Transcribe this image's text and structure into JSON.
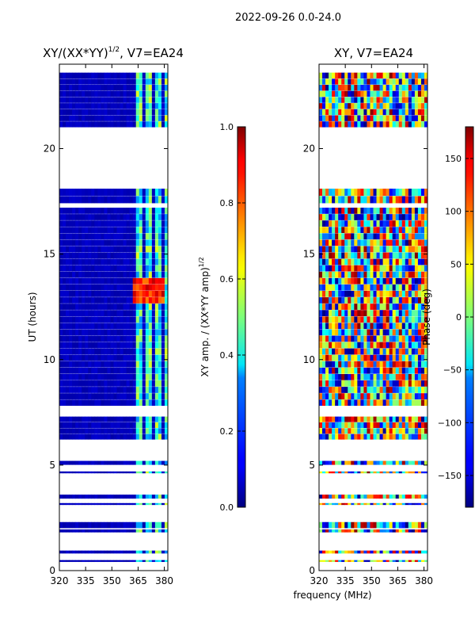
{
  "figure": {
    "suptitle": "2022-09-26 0.0-24.0",
    "common_xlabel": "frequency (MHz)"
  },
  "chart_data": [
    {
      "type": "heatmap",
      "title_main": "XY/(XX*YY)",
      "title_sup": "1/2",
      "title_rest": ", V7=EA24",
      "xlabel": "frequency (MHz)",
      "ylabel": "UT (hours)",
      "xlim": [
        320,
        382
      ],
      "ylim": [
        0,
        24
      ],
      "xticks": [
        320,
        335,
        350,
        365,
        380
      ],
      "yticks": [
        0,
        5,
        10,
        15,
        20
      ],
      "colorbar": {
        "label_main": "XY amp. / (XX*YY amp)",
        "label_sup": "1/2",
        "range": [
          0.0,
          1.0
        ],
        "ticks": [
          "0.0",
          "0.2",
          "0.4",
          "0.6",
          "0.8",
          "1.0"
        ],
        "tick_values": [
          0.0,
          0.2,
          0.4,
          0.6,
          0.8,
          1.0
        ]
      },
      "data_rows_ut": [
        [
          0.4,
          0.5
        ],
        [
          0.8,
          0.95
        ],
        [
          1.8,
          1.95
        ],
        [
          2.0,
          2.3
        ],
        [
          3.1,
          3.2
        ],
        [
          3.4,
          3.6
        ],
        [
          4.6,
          4.7
        ],
        [
          5.0,
          5.2
        ],
        [
          6.2,
          7.3
        ],
        [
          7.8,
          17.2
        ],
        [
          17.4,
          18.1
        ],
        [
          21.0,
          23.6
        ]
      ],
      "notes": "Amplitude low (~0.05) across band; elevated values (0.3-0.6) near 365-380 MHz; peak ~0.85 at 362-380 MHz around 12.5-13.8 UT"
    },
    {
      "type": "heatmap",
      "title": "XY, V7=EA24",
      "xlabel": "frequency (MHz)",
      "ylabel": "",
      "xlim": [
        320,
        382
      ],
      "ylim": [
        0,
        24
      ],
      "xticks": [
        320,
        335,
        350,
        365,
        380
      ],
      "yticks": [
        0,
        5,
        10,
        15,
        20
      ],
      "colorbar": {
        "label": "Phase (deg)",
        "range": [
          -180,
          180
        ],
        "ticks": [
          "150",
          "100",
          "50",
          "0",
          "−50",
          "−100",
          "−150"
        ],
        "tick_values": [
          150,
          100,
          50,
          0,
          -50,
          -100,
          -150
        ]
      },
      "data_rows_ut": [
        [
          0.4,
          0.5
        ],
        [
          0.8,
          0.95
        ],
        [
          1.8,
          1.95
        ],
        [
          2.0,
          2.3
        ],
        [
          3.1,
          3.2
        ],
        [
          3.4,
          3.6
        ],
        [
          4.6,
          4.7
        ],
        [
          5.0,
          5.2
        ],
        [
          6.2,
          7.3
        ],
        [
          7.8,
          17.2
        ],
        [
          17.4,
          18.1
        ],
        [
          21.0,
          23.6
        ]
      ],
      "notes": "Phase varies widely between -180 and 180 deg across band and time (noisy)"
    }
  ]
}
